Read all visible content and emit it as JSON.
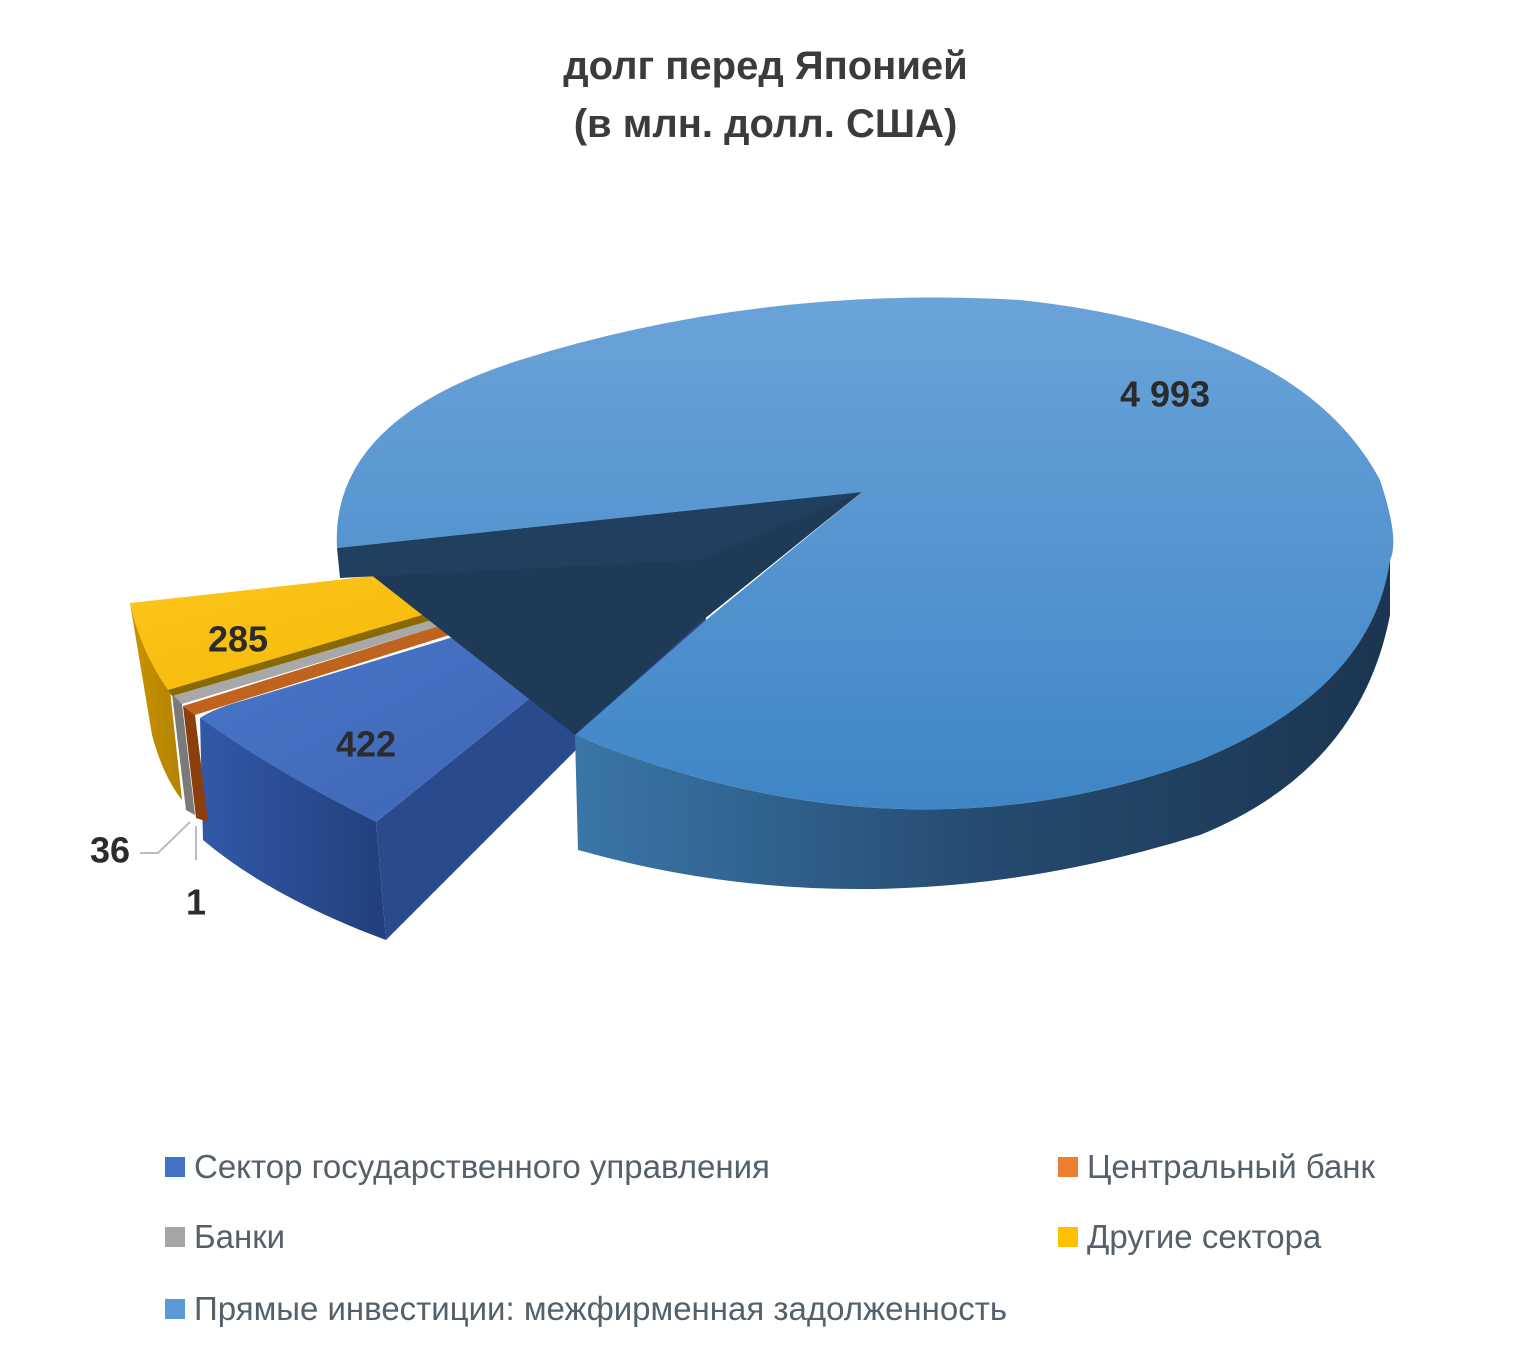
{
  "chart_data": {
    "type": "pie",
    "title": "долг перед Японией",
    "subtitle": "(в млн. долл. США)",
    "slices": [
      {
        "label": "Сектор государственного управления",
        "value": 422,
        "value_label": "422",
        "color": "#4472c4"
      },
      {
        "label": "Центральный банк",
        "value": 1,
        "value_label": "1",
        "color": "#ed7d31"
      },
      {
        "label": "Банки",
        "value": 36,
        "value_label": "36",
        "color": "#a5a5a5"
      },
      {
        "label": "Другие сектора",
        "value": 285,
        "value_label": "285",
        "color": "#ffc000"
      },
      {
        "label": "Прямые инвестиции: межфирменная задолженность",
        "value": 4993,
        "value_label": "4 993",
        "color": "#5b9bd5"
      }
    ],
    "legend_position": "bottom",
    "style": "3d exploded pie"
  }
}
